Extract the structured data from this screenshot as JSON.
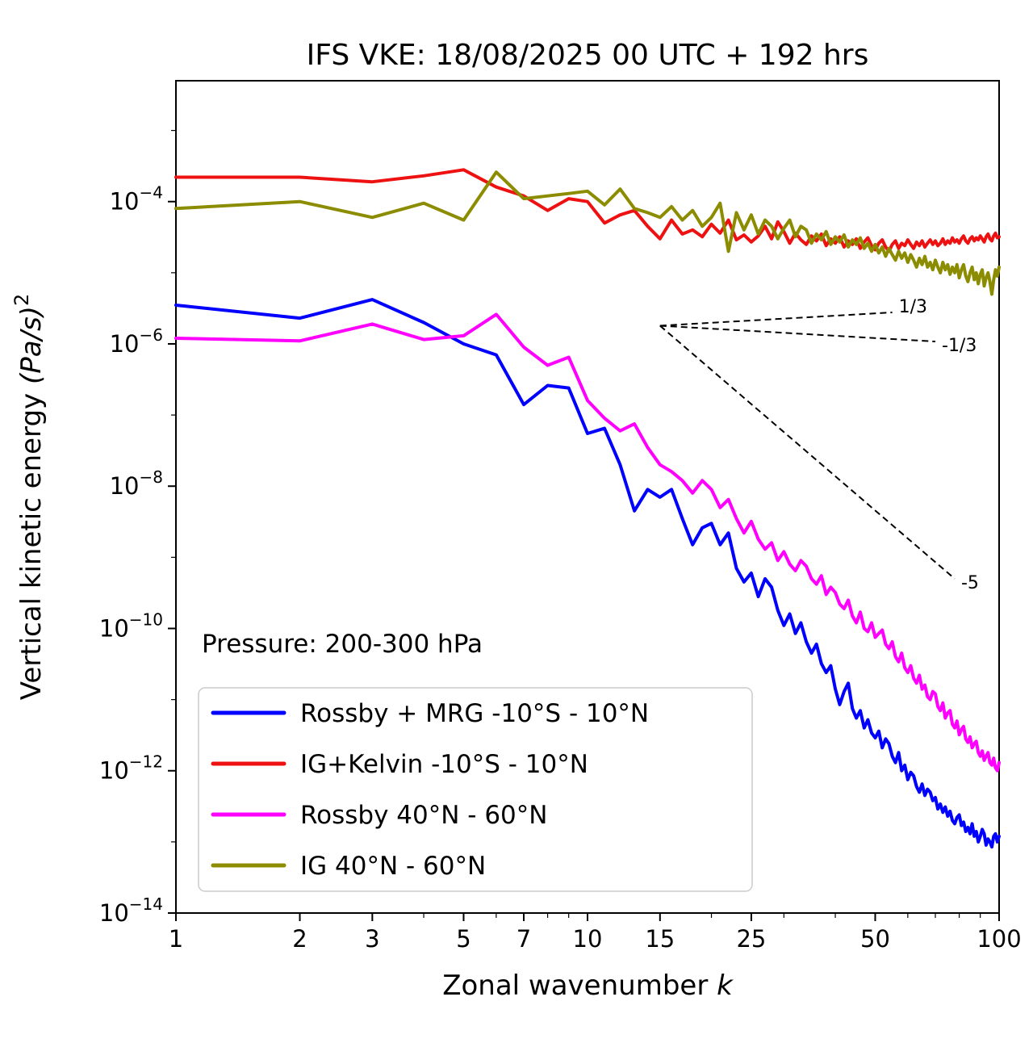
{
  "figure": {
    "title": "IFS VKE: 18/08/2025 00 UTC + 192 hrs",
    "annotation": "Pressure: 200-300 hPa"
  },
  "chart_data": {
    "type": "line",
    "title": "IFS VKE: 18/08/2025 00 UTC + 192 hrs",
    "xlabel": "Zonal wavenumber ",
    "xlabel_italic": "k",
    "ylabel": "Vertical kinetic energy ",
    "ylabel_math": "(Pa/s)",
    "ylabel_exp": "2",
    "xscale": "log",
    "yscale": "log",
    "xlim": [
      1,
      100
    ],
    "ylim": [
      1e-14,
      0.005
    ],
    "xticks": [
      1,
      2,
      3,
      5,
      7,
      10,
      15,
      25,
      50,
      100
    ],
    "xtick_labels": [
      "1",
      "2",
      "3",
      "5",
      "7",
      "10",
      "15",
      "25",
      "50",
      "100"
    ],
    "xtick_minor": [
      4,
      6,
      8,
      9,
      20,
      30,
      40,
      60,
      70,
      80,
      90
    ],
    "ytick_exponents": [
      -4,
      -6,
      -8,
      -10,
      -12,
      -14
    ],
    "ytick_minor_exponents": [
      -3,
      -5,
      -7,
      -9,
      -11,
      -13
    ],
    "grid": false,
    "legend_position": "lower left",
    "annotation": "Pressure: 200-300 hPa",
    "x": [
      1,
      2,
      3,
      4,
      5,
      6,
      7,
      8,
      9,
      10,
      11,
      12,
      13,
      14,
      15,
      16,
      17,
      18,
      19,
      20,
      21,
      22,
      23,
      24,
      25,
      26,
      27,
      28,
      29,
      30,
      31,
      32,
      33,
      34,
      35,
      36,
      37,
      38,
      39,
      40,
      41,
      42,
      43,
      44,
      45,
      46,
      47,
      48,
      49,
      50,
      51,
      52,
      53,
      54,
      55,
      56,
      57,
      58,
      59,
      60,
      61,
      62,
      63,
      64,
      65,
      66,
      67,
      68,
      69,
      70,
      71,
      72,
      73,
      74,
      75,
      76,
      77,
      78,
      79,
      80,
      81,
      82,
      83,
      84,
      85,
      86,
      87,
      88,
      89,
      90,
      91,
      92,
      93,
      94,
      95,
      96,
      97,
      98,
      99,
      100
    ],
    "series": [
      {
        "name": "Rossby + MRG -10°S - 10°N",
        "color": "#0000ff",
        "values": [
          3.5e-06,
          2.3e-06,
          4.2e-06,
          2e-06,
          1e-06,
          7e-07,
          1.4e-07,
          2.6e-07,
          2.4e-07,
          5.5e-08,
          6.5e-08,
          2e-08,
          4.5e-09,
          9e-09,
          7e-09,
          9e-09,
          3.5e-09,
          1.5e-09,
          2.6e-09,
          3e-09,
          1.5e-09,
          2.2e-09,
          7e-10,
          4.5e-10,
          6e-10,
          2.8e-10,
          5e-10,
          3.8e-10,
          1.8e-10,
          1.1e-10,
          1.6e-10,
          8.5e-11,
          1.2e-10,
          6.5e-11,
          4.5e-11,
          6e-11,
          3.2e-11,
          2.4e-11,
          3e-11,
          1.4e-11,
          8.5e-12,
          1.3e-11,
          1.7e-11,
          7.5e-12,
          5.5e-12,
          7e-12,
          4e-12,
          5.2e-12,
          3.4e-12,
          2.9e-12,
          3.6e-12,
          2.1e-12,
          2.8e-12,
          2.4e-12,
          1.6e-12,
          1.3e-12,
          1.8e-12,
          1e-12,
          1.2e-12,
          7.5e-13,
          9.5e-13,
          8.5e-13,
          6e-13,
          5e-13,
          6.5e-13,
          4.5e-13,
          5.5e-13,
          5e-13,
          3.8e-13,
          4.2e-13,
          2.9e-13,
          3.4e-13,
          2.6e-13,
          3.1e-13,
          2.3e-13,
          2.7e-13,
          2e-13,
          1.8e-13,
          2.2e-13,
          2.4e-13,
          1.7e-13,
          1.9e-13,
          1.4e-13,
          1.6e-13,
          1.3e-13,
          1.8e-13,
          1.2e-13,
          1.4e-13,
          1e-13,
          1.2e-13,
          1.5e-13,
          1.3e-13,
          9e-14,
          1.1e-13,
          1e-13,
          8.5e-14,
          1.2e-13,
          1.3e-13,
          1e-13,
          1.2e-13
        ]
      },
      {
        "name": "IG+Kelvin -10°S - 10°N",
        "color": "#ee1111",
        "values": [
          0.00022,
          0.00022,
          0.00019,
          0.00023,
          0.00028,
          0.00016,
          0.00012,
          7.5e-05,
          0.00011,
          0.0001,
          5e-05,
          6.5e-05,
          7.5e-05,
          4.5e-05,
          3e-05,
          5.5e-05,
          3.5e-05,
          4e-05,
          3.2e-05,
          4.8e-05,
          3.6e-05,
          5.5e-05,
          2.9e-05,
          3.4e-05,
          2.7e-05,
          3.3e-05,
          4.5e-05,
          3e-05,
          5.2e-05,
          3.8e-05,
          2.6e-05,
          3.6e-05,
          2.9e-05,
          2.5e-05,
          3.3e-05,
          2.8e-05,
          3.5e-05,
          2.4e-05,
          3e-05,
          2.6e-05,
          3.2e-05,
          2.3e-05,
          2.8e-05,
          2.5e-05,
          3e-05,
          2.2e-05,
          2.7e-05,
          3.1e-05,
          2.4e-05,
          2.1e-05,
          2.6e-05,
          2.9e-05,
          2.3e-05,
          2e-05,
          2.5e-05,
          2.8e-05,
          2.2e-05,
          2.6e-05,
          2.4e-05,
          2.9e-05,
          2.5e-05,
          2.2e-05,
          2.7e-05,
          2.4e-05,
          2.8e-05,
          2.3e-05,
          2.6e-05,
          2.9e-05,
          2.5e-05,
          2.8e-05,
          2.4e-05,
          2.6e-05,
          3e-05,
          2.5e-05,
          2.8e-05,
          2.6e-05,
          3.1e-05,
          2.7e-05,
          2.9e-05,
          2.6e-05,
          3e-05,
          3.3e-05,
          2.8e-05,
          2.6e-05,
          3e-05,
          3.2e-05,
          2.8e-05,
          3.1e-05,
          2.9e-05,
          3.3e-05,
          3e-05,
          2.7e-05,
          3.2e-05,
          3.5e-05,
          3e-05,
          2.8e-05,
          3.3e-05,
          3.6e-05,
          3.1e-05,
          3.2e-05
        ]
      },
      {
        "name": "Rossby 40°N - 60°N",
        "color": "#ff00ff",
        "values": [
          1.2e-06,
          1.1e-06,
          1.9e-06,
          1.15e-06,
          1.3e-06,
          2.6e-06,
          9e-07,
          5e-07,
          6.5e-07,
          1.6e-07,
          9e-08,
          6e-08,
          7.5e-08,
          3.5e-08,
          2e-08,
          1.6e-08,
          1.2e-08,
          8e-09,
          1.2e-08,
          9e-09,
          5e-09,
          6.5e-09,
          3.5e-09,
          2.2e-09,
          3.2e-09,
          1.8e-09,
          1.3e-09,
          1.6e-09,
          9e-10,
          1.2e-09,
          8e-10,
          6.5e-10,
          9e-10,
          7.5e-10,
          5e-10,
          4.2e-10,
          5.5e-10,
          3e-10,
          3.8e-10,
          3.2e-10,
          2.2e-10,
          1.9e-10,
          2.5e-10,
          1.5e-10,
          1.2e-10,
          1.7e-10,
          1e-10,
          9e-11,
          1.2e-10,
          7.5e-11,
          8.5e-11,
          9.5e-11,
          6e-11,
          5.2e-11,
          6.5e-11,
          4e-11,
          3.4e-11,
          4.5e-11,
          2.8e-11,
          2.4e-11,
          3e-11,
          2e-11,
          1.7e-11,
          2.2e-11,
          1.4e-11,
          1.6e-11,
          1.1e-11,
          1e-11,
          1.3e-11,
          1.2e-11,
          8e-12,
          7e-12,
          9e-12,
          5.5e-12,
          6.5e-12,
          7e-12,
          4.5e-12,
          4e-12,
          5e-12,
          3.2e-12,
          3.8e-12,
          4.2e-12,
          2.8e-12,
          2.5e-12,
          3e-12,
          2.1e-12,
          2.4e-12,
          2.6e-12,
          1.8e-12,
          1.6e-12,
          1.9e-12,
          1.4e-12,
          1.6e-12,
          1.8e-12,
          1.3e-12,
          1.2e-12,
          1.5e-12,
          1.1e-12,
          1e-12,
          1.3e-12
        ]
      },
      {
        "name": "IG 40°N - 60°N",
        "color": "#8c8c00",
        "values": [
          8e-05,
          0.0001,
          6e-05,
          9.5e-05,
          5.5e-05,
          0.00026,
          0.00011,
          0.00012,
          0.00013,
          0.00014,
          9e-05,
          0.00015,
          8e-05,
          7e-05,
          6e-05,
          8.5e-05,
          5.5e-05,
          7.5e-05,
          4.5e-05,
          6e-05,
          9.5e-05,
          2e-05,
          7e-05,
          4e-05,
          6.5e-05,
          3.5e-05,
          5.5e-05,
          4.5e-05,
          3e-05,
          4.2e-05,
          5.5e-05,
          3.2e-05,
          4.5e-05,
          4e-05,
          2.6e-05,
          3.5e-05,
          2.9e-05,
          3.8e-05,
          2.5e-05,
          3.2e-05,
          2.7e-05,
          3.4e-05,
          2.3e-05,
          2.9e-05,
          2.5e-05,
          3.1e-05,
          2.2e-05,
          2.6e-05,
          2e-05,
          2.5e-05,
          1.9e-05,
          2.3e-05,
          1.7e-05,
          2.2e-05,
          1.8e-05,
          1.5e-05,
          2e-05,
          1.6e-05,
          1.9e-05,
          1.4e-05,
          1.8e-05,
          1.5e-05,
          1.2e-05,
          1.6e-05,
          1.3e-05,
          1.7e-05,
          1.2e-05,
          1.4e-05,
          1.1e-05,
          1.5e-05,
          1.2e-05,
          1e-05,
          1.4e-05,
          1.1e-05,
          1.3e-05,
          9.5e-06,
          1.2e-05,
          1e-05,
          1.3e-05,
          8.5e-06,
          1.1e-05,
          1.3e-05,
          9e-06,
          7.5e-06,
          1e-05,
          1.2e-05,
          8e-06,
          1e-05,
          7e-06,
          9.5e-06,
          1.1e-05,
          6.5e-06,
          8.5e-06,
          1e-05,
          7.5e-06,
          5e-06,
          8e-06,
          1.1e-05,
          9e-06,
          1.2e-05
        ]
      }
    ],
    "reference_lines": [
      {
        "label": "1/3",
        "slope": 0.3333,
        "x0": 15,
        "y0": 1.8e-06,
        "x1": 55,
        "y1": 2.77e-06
      },
      {
        "label": "-1/3",
        "slope": -0.3333,
        "x0": 15,
        "y0": 1.8e-06,
        "x1": 70,
        "y1": 1.08e-06
      },
      {
        "label": "-5",
        "slope": -5,
        "x0": 15,
        "y0": 1.8e-06,
        "x1": 78,
        "y1": 5e-10
      }
    ]
  }
}
